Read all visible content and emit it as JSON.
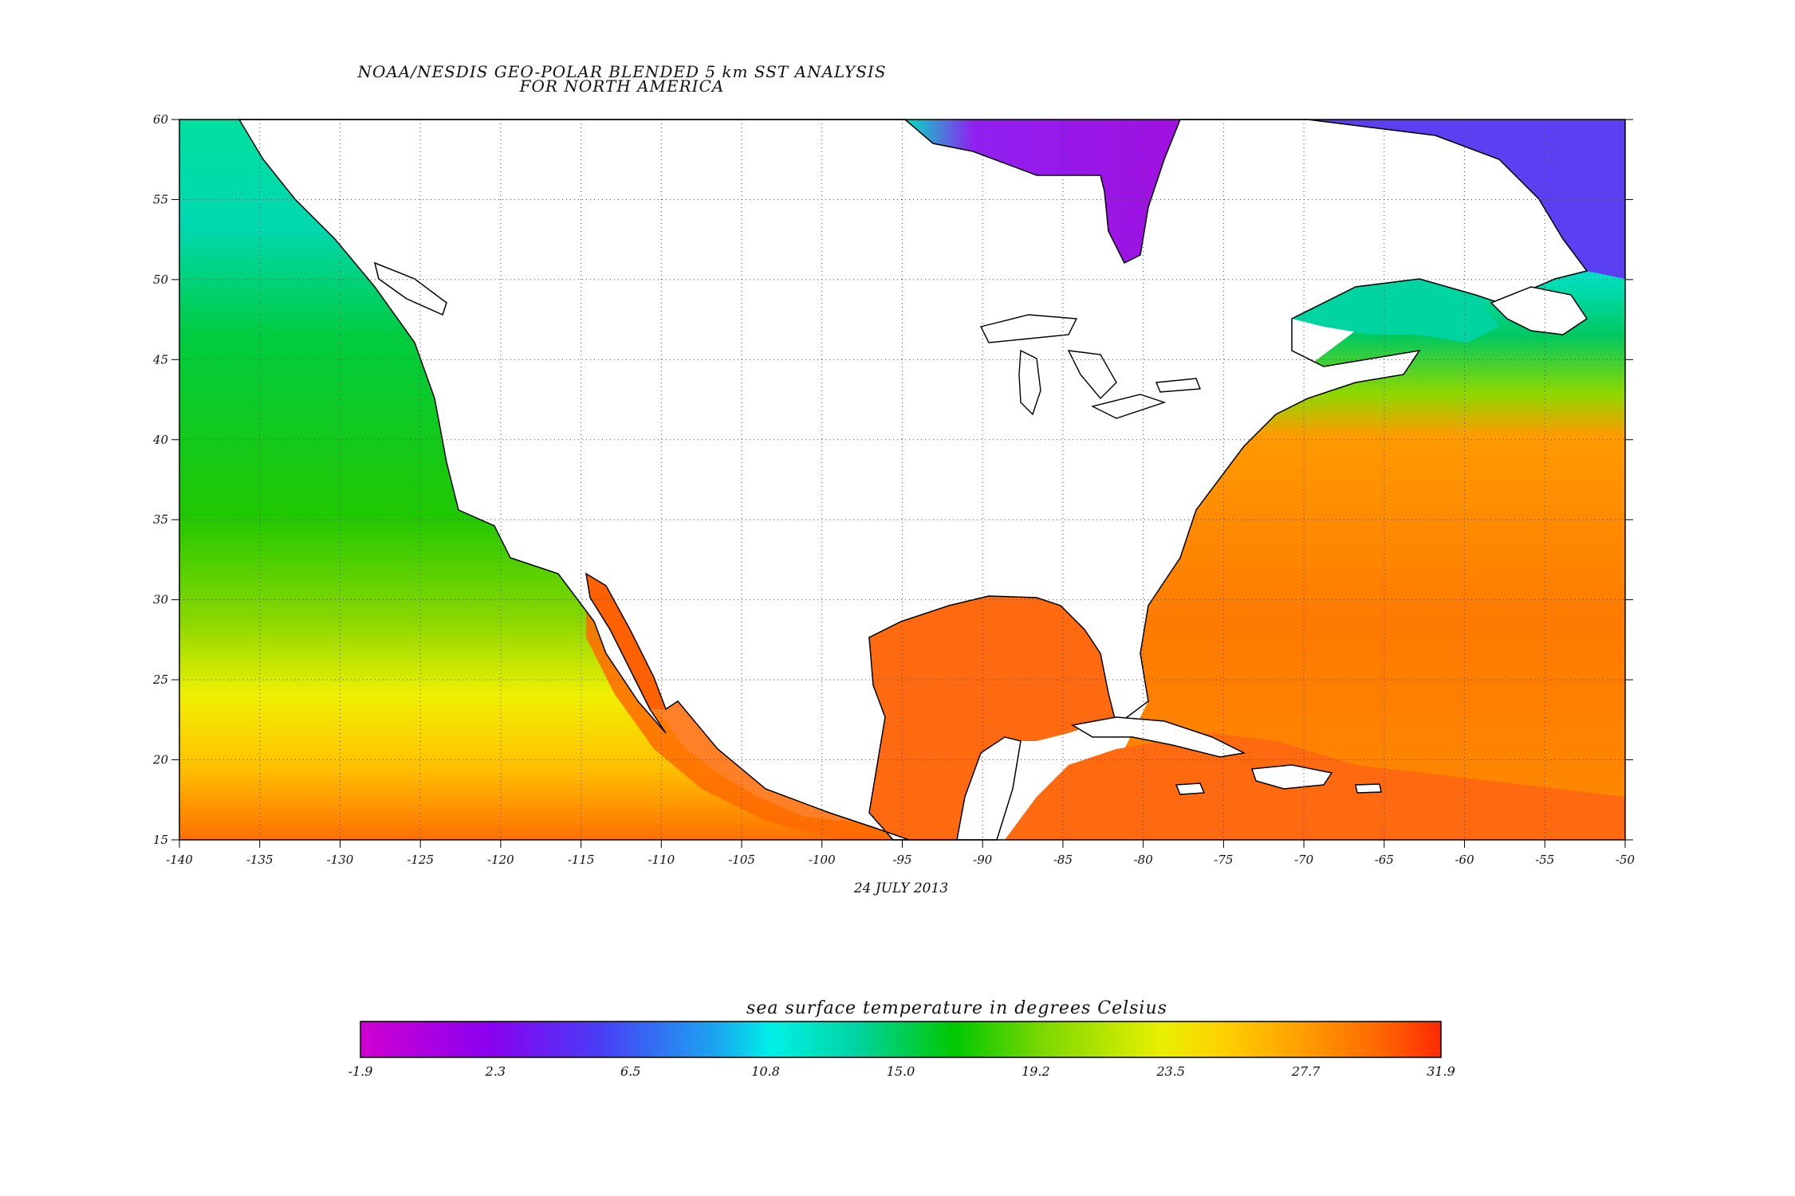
{
  "title_line1": "NOAA/NESDIS GEO-POLAR BLENDED 5 km SST ANALYSIS",
  "title_line2": "FOR NORTH AMERICA",
  "date": "24 JULY 2013",
  "colorbar_title": "sea surface temperature in degrees Celsius",
  "map": {
    "lon_range": [
      -140,
      -50
    ],
    "lat_range": [
      15,
      60
    ],
    "lon_ticks": [
      -140,
      -135,
      -130,
      -125,
      -120,
      -115,
      -110,
      -105,
      -100,
      -95,
      -90,
      -85,
      -80,
      -75,
      -70,
      -65,
      -60,
      -55,
      -50
    ],
    "lat_ticks": [
      15,
      20,
      25,
      30,
      35,
      40,
      45,
      50,
      55,
      60
    ],
    "grid": "dotted",
    "land_color": "#ffffff",
    "coastline_color": "#000000"
  },
  "colorbar": {
    "min": -1.9,
    "max": 31.9,
    "tick_labels": [
      "-1.9",
      "2.3",
      "6.5",
      "10.8",
      "15.0",
      "19.2",
      "23.5",
      "27.7",
      "31.9"
    ],
    "colors": [
      "#d000d0",
      "#8a00f0",
      "#4a3cf5",
      "#1aa6f0",
      "#00f0e8",
      "#00d4a0",
      "#00c800",
      "#7ad800",
      "#e8f000",
      "#ffd000",
      "#ff9800",
      "#ff6a00",
      "#ff2a00"
    ]
  }
}
